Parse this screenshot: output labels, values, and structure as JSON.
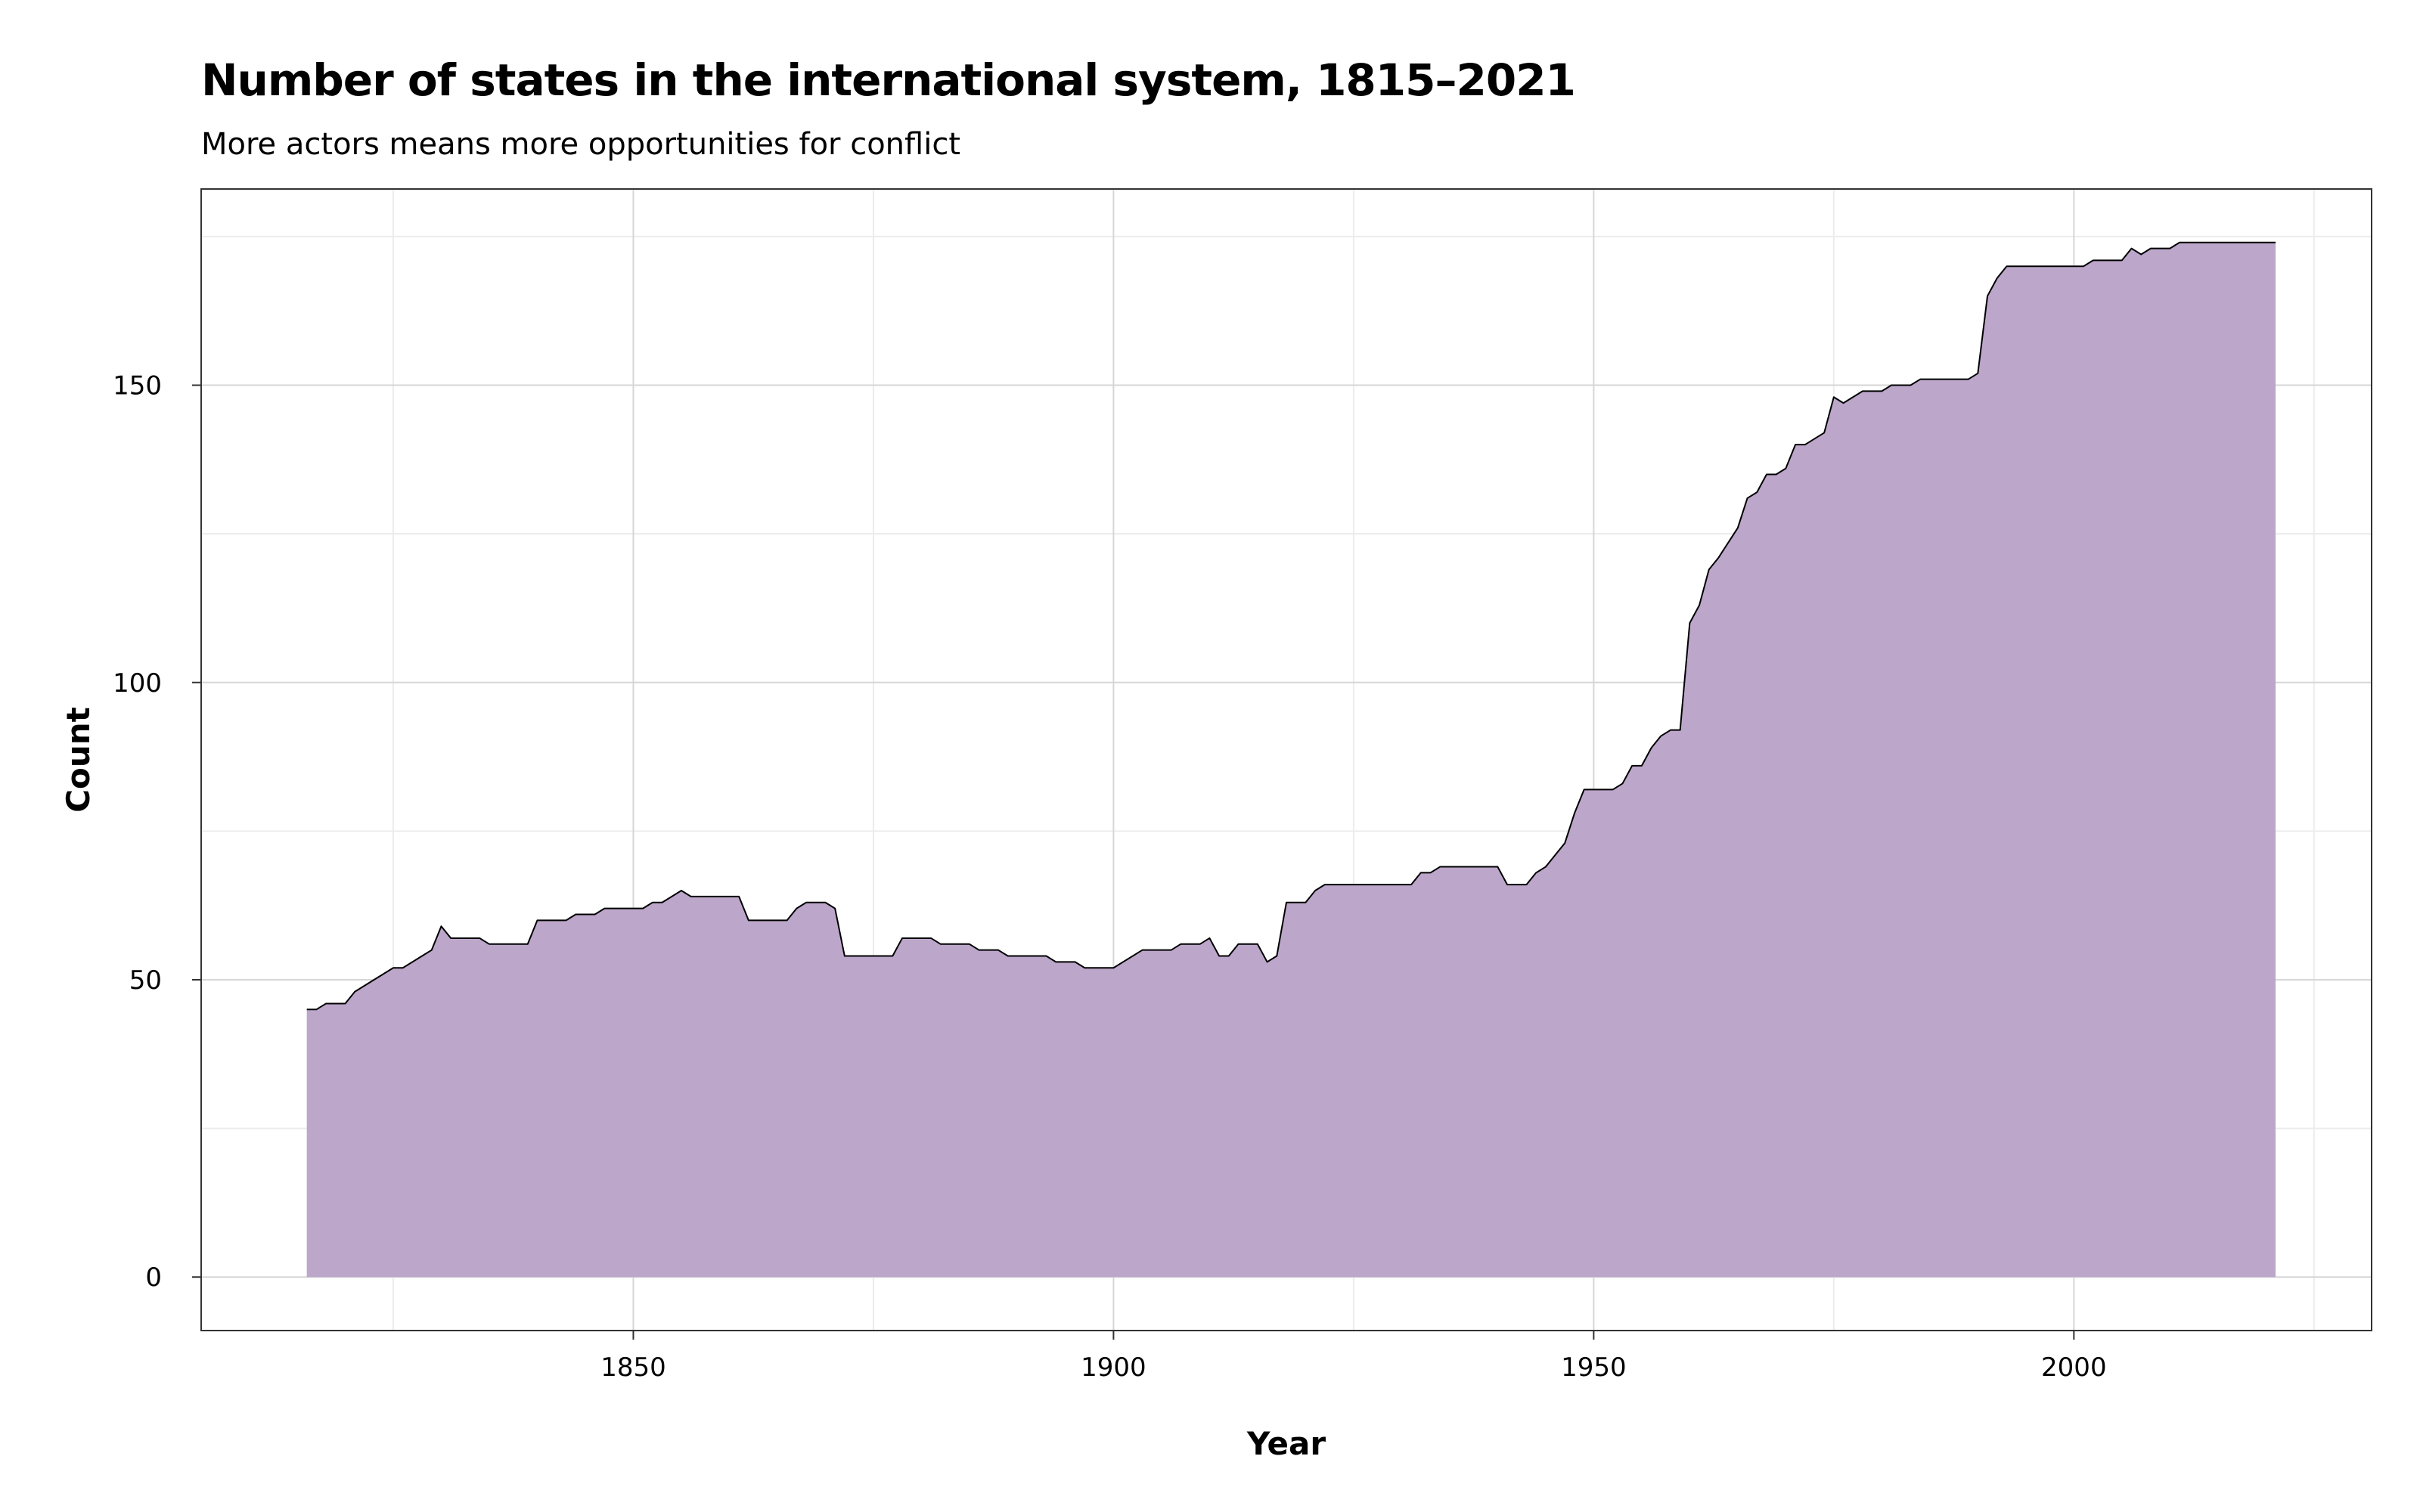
{
  "chart_data": {
    "type": "area",
    "title": "Number of states in the international system, 1815–2021",
    "subtitle": "More actors means more opportunities for conflict",
    "xlabel": "Year",
    "ylabel": "Count",
    "xlim": [
      1805,
      2031
    ],
    "ylim": [
      -9,
      183
    ],
    "x_ticks": [
      1850,
      1900,
      1950,
      2000
    ],
    "y_ticks": [
      0,
      50,
      100,
      150
    ],
    "grid": true,
    "fill_color": "#bca6ca",
    "line_color": "#000000",
    "series": [
      {
        "points": [
          [
            1816,
            45
          ],
          [
            1817,
            45
          ],
          [
            1818,
            46
          ],
          [
            1820,
            46
          ],
          [
            1821,
            48
          ],
          [
            1822,
            49
          ],
          [
            1823,
            50
          ],
          [
            1824,
            51
          ],
          [
            1825,
            52
          ],
          [
            1826,
            52
          ],
          [
            1828,
            54
          ],
          [
            1829,
            55
          ],
          [
            1830,
            59
          ],
          [
            1831,
            57
          ],
          [
            1834,
            57
          ],
          [
            1835,
            56
          ],
          [
            1839,
            56
          ],
          [
            1840,
            60
          ],
          [
            1843,
            60
          ],
          [
            1844,
            61
          ],
          [
            1846,
            61
          ],
          [
            1847,
            62
          ],
          [
            1851,
            62
          ],
          [
            1852,
            63
          ],
          [
            1853,
            63
          ],
          [
            1855,
            65
          ],
          [
            1856,
            64
          ],
          [
            1861,
            64
          ],
          [
            1862,
            60
          ],
          [
            1866,
            60
          ],
          [
            1867,
            62
          ],
          [
            1868,
            63
          ],
          [
            1870,
            63
          ],
          [
            1871,
            62
          ],
          [
            1872,
            54
          ],
          [
            1877,
            54
          ],
          [
            1878,
            57
          ],
          [
            1881,
            57
          ],
          [
            1882,
            56
          ],
          [
            1885,
            56
          ],
          [
            1886,
            55
          ],
          [
            1888,
            55
          ],
          [
            1889,
            54
          ],
          [
            1893,
            54
          ],
          [
            1894,
            53
          ],
          [
            1896,
            53
          ],
          [
            1897,
            52
          ],
          [
            1900,
            52
          ],
          [
            1903,
            55
          ],
          [
            1906,
            55
          ],
          [
            1907,
            56
          ],
          [
            1909,
            56
          ],
          [
            1910,
            57
          ],
          [
            1911,
            54
          ],
          [
            1912,
            54
          ],
          [
            1913,
            56
          ],
          [
            1915,
            56
          ],
          [
            1916,
            53
          ],
          [
            1917,
            54
          ],
          [
            1918,
            63
          ],
          [
            1920,
            63
          ],
          [
            1921,
            65
          ],
          [
            1922,
            66
          ],
          [
            1931,
            66
          ],
          [
            1932,
            68
          ],
          [
            1933,
            68
          ],
          [
            1934,
            69
          ],
          [
            1940,
            69
          ],
          [
            1941,
            66
          ],
          [
            1943,
            66
          ],
          [
            1944,
            68
          ],
          [
            1945,
            69
          ],
          [
            1947,
            73
          ],
          [
            1948,
            78
          ],
          [
            1949,
            82
          ],
          [
            1952,
            82
          ],
          [
            1953,
            83
          ],
          [
            1954,
            86
          ],
          [
            1955,
            86
          ],
          [
            1956,
            89
          ],
          [
            1957,
            91
          ],
          [
            1958,
            92
          ],
          [
            1959,
            92
          ],
          [
            1960,
            110
          ],
          [
            1961,
            113
          ],
          [
            1962,
            119
          ],
          [
            1963,
            121
          ],
          [
            1965,
            126
          ],
          [
            1966,
            131
          ],
          [
            1967,
            132
          ],
          [
            1968,
            135
          ],
          [
            1969,
            135
          ],
          [
            1970,
            136
          ],
          [
            1971,
            140
          ],
          [
            1972,
            140
          ],
          [
            1974,
            142
          ],
          [
            1975,
            148
          ],
          [
            1976,
            147
          ],
          [
            1978,
            149
          ],
          [
            1980,
            149
          ],
          [
            1981,
            150
          ],
          [
            1983,
            150
          ],
          [
            1984,
            151
          ],
          [
            1989,
            151
          ],
          [
            1990,
            152
          ],
          [
            1991,
            165
          ],
          [
            1992,
            168
          ],
          [
            1993,
            170
          ],
          [
            2001,
            170
          ],
          [
            2002,
            171
          ],
          [
            2005,
            171
          ],
          [
            2006,
            173
          ],
          [
            2007,
            172
          ],
          [
            2008,
            173
          ],
          [
            2010,
            173
          ],
          [
            2011,
            174
          ],
          [
            2021,
            174
          ]
        ]
      }
    ]
  }
}
